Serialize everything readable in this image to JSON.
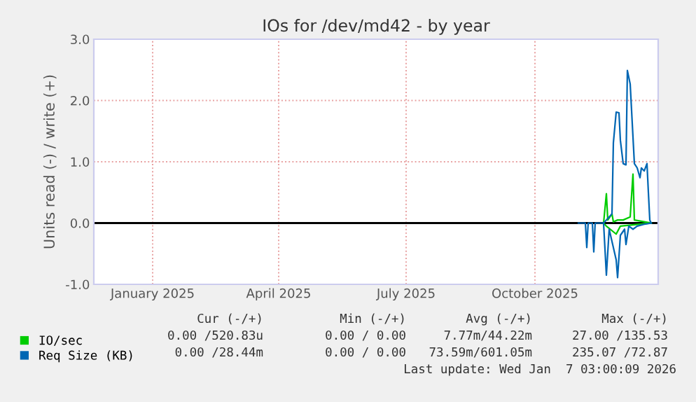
{
  "chart_data": {
    "type": "line",
    "title": "IOs for /dev/md42 - by year",
    "ylabel": "Units read (-) / write (+)",
    "xlim": [
      "2024-12-05",
      "2026-01-12"
    ],
    "xticks": [
      {
        "value": "2025-01-16",
        "label": "January 2025"
      },
      {
        "value": "2025-04-16",
        "label": "April 2025"
      },
      {
        "value": "2025-07-16",
        "label": "July 2025"
      },
      {
        "value": "2025-10-16",
        "label": "October 2025"
      }
    ],
    "ylim": [
      -1.0,
      3.0
    ],
    "yticks": [
      {
        "value": -1,
        "label": "-1.0"
      },
      {
        "value": 0,
        "label": "0.0"
      },
      {
        "value": 1,
        "label": "1.0"
      },
      {
        "value": 2,
        "label": "2.0"
      },
      {
        "value": 3,
        "label": "3.0"
      }
    ],
    "grid": true,
    "legend": "bottom left",
    "ref_lines": [
      {
        "axis": "y",
        "value": 0,
        "color": "#000000"
      }
    ],
    "series": [
      {
        "name": "IO/sec",
        "color": "#00cc00",
        "x": [
          "2025-12-04",
          "2025-12-06",
          "2025-12-07",
          "2025-12-10",
          "2025-12-11",
          "2025-12-14",
          "2025-12-18",
          "2025-12-23",
          "2025-12-25",
          "2025-12-26",
          "2026-01-07"
        ],
        "values": [
          0,
          0.48,
          0.05,
          0.15,
          0.02,
          0.05,
          0.05,
          0.1,
          0.8,
          0.05,
          0
        ]
      },
      {
        "color": "#00cc00",
        "x": [
          "2025-12-04",
          "2025-12-06",
          "2025-12-13",
          "2025-12-16",
          "2026-01-07"
        ],
        "values": [
          0,
          -0.05,
          -0.18,
          -0.05,
          0
        ]
      },
      {
        "name": "Req Size (KB)",
        "color": "#0066b3",
        "x": [
          "2025-12-04",
          "2025-12-06",
          "2025-12-08",
          "2025-12-10",
          "2025-12-11",
          "2025-12-13",
          "2025-12-15",
          "2025-12-16",
          "2025-12-18",
          "2025-12-20",
          "2025-12-21",
          "2025-12-23",
          "2025-12-26",
          "2025-12-28",
          "2025-12-30",
          "2025-12-31",
          "2026-01-02",
          "2026-01-04",
          "2026-01-05",
          "2026-01-06",
          "2026-01-07"
        ],
        "values": [
          0,
          0.05,
          0.1,
          0.15,
          1.31,
          1.81,
          1.8,
          1.35,
          0.97,
          0.95,
          2.49,
          2.27,
          0.97,
          0.9,
          0.74,
          0.9,
          0.85,
          0.97,
          0.5,
          0.05,
          0
        ]
      },
      {
        "color": "#0066b3",
        "x": [
          "2025-11-16",
          "2025-11-21",
          "2025-11-22",
          "2025-11-23",
          "2025-11-26",
          "2025-11-27",
          "2025-11-28",
          "2025-12-04",
          "2025-12-06",
          "2025-12-08",
          "2025-12-10",
          "2025-12-13",
          "2025-12-14",
          "2025-12-16",
          "2025-12-19",
          "2025-12-20",
          "2025-12-22",
          "2025-12-25",
          "2025-12-28",
          "2026-01-02",
          "2026-01-07"
        ],
        "values": [
          0,
          0,
          -0.4,
          0,
          0,
          -0.47,
          0,
          0,
          -0.85,
          -0.1,
          -0.3,
          -0.6,
          -0.89,
          -0.2,
          -0.1,
          -0.35,
          -0.05,
          -0.1,
          -0.05,
          -0.02,
          0
        ]
      }
    ],
    "annotations": [
      "Cur (-/+)",
      "Min (-/+)",
      "Avg (-/+)",
      "Max (-/+)",
      "0.00 /520.83u",
      "0.00 / 0.00",
      "7.77m/44.22m",
      "27.00 /135.53",
      "0.00 /28.44m",
      "0.00 / 0.00",
      "73.59m/601.05m",
      "235.07 /72.87",
      "Last update: Wed Jan  7 03:00:09 2026"
    ]
  }
}
